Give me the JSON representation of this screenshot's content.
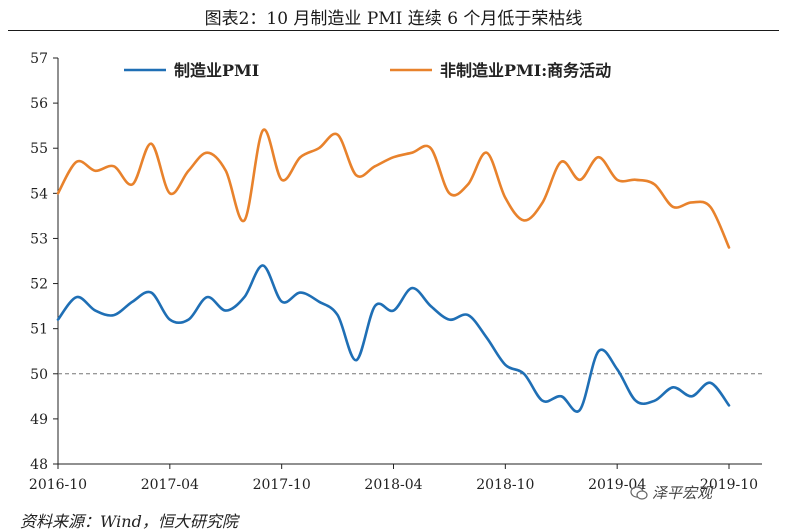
{
  "header": {
    "title": "图表2：10 月制造业 PMI 连续 6 个月低于荣枯线"
  },
  "footer": {
    "source": "资料来源：Wind，恒大研究院",
    "watermark": "泽平宏观"
  },
  "chart_data": {
    "type": "line",
    "title": "图表2：10 月制造业 PMI 连续 6 个月低于荣枯线",
    "xlabel": "",
    "ylabel": "",
    "ylim": [
      48,
      57
    ],
    "yticks": [
      48,
      49,
      50,
      51,
      52,
      53,
      54,
      55,
      56,
      57
    ],
    "x_tick_labels": [
      "2016-10",
      "2017-04",
      "2017-10",
      "2018-04",
      "2018-10",
      "2019-04",
      "2019-10"
    ],
    "x_tick_index": [
      0,
      6,
      12,
      18,
      24,
      30,
      36
    ],
    "reference_line": {
      "value": 50,
      "style": "dashed"
    },
    "grid": false,
    "legend_position": "top",
    "series": [
      {
        "name": "制造业PMI",
        "color": "#1f6fb5",
        "values": [
          51.2,
          51.7,
          51.4,
          51.3,
          51.6,
          51.8,
          51.2,
          51.2,
          51.7,
          51.4,
          51.7,
          52.4,
          51.6,
          51.8,
          51.6,
          51.3,
          50.3,
          51.5,
          51.4,
          51.9,
          51.5,
          51.2,
          51.3,
          50.8,
          50.2,
          50.0,
          49.4,
          49.5,
          49.2,
          50.5,
          50.1,
          49.4,
          49.4,
          49.7,
          49.5,
          49.8,
          49.3
        ]
      },
      {
        "name": "非制造业PMI:商务活动",
        "color": "#e8822c",
        "values": [
          54.0,
          54.7,
          54.5,
          54.6,
          54.2,
          55.1,
          54.0,
          54.5,
          54.9,
          54.5,
          53.4,
          55.4,
          54.3,
          54.8,
          55.0,
          55.3,
          54.4,
          54.6,
          54.8,
          54.9,
          55.0,
          54.0,
          54.2,
          54.9,
          53.9,
          53.4,
          53.8,
          54.7,
          54.3,
          54.8,
          54.3,
          54.3,
          54.2,
          53.7,
          53.8,
          53.7,
          52.8
        ]
      }
    ]
  }
}
